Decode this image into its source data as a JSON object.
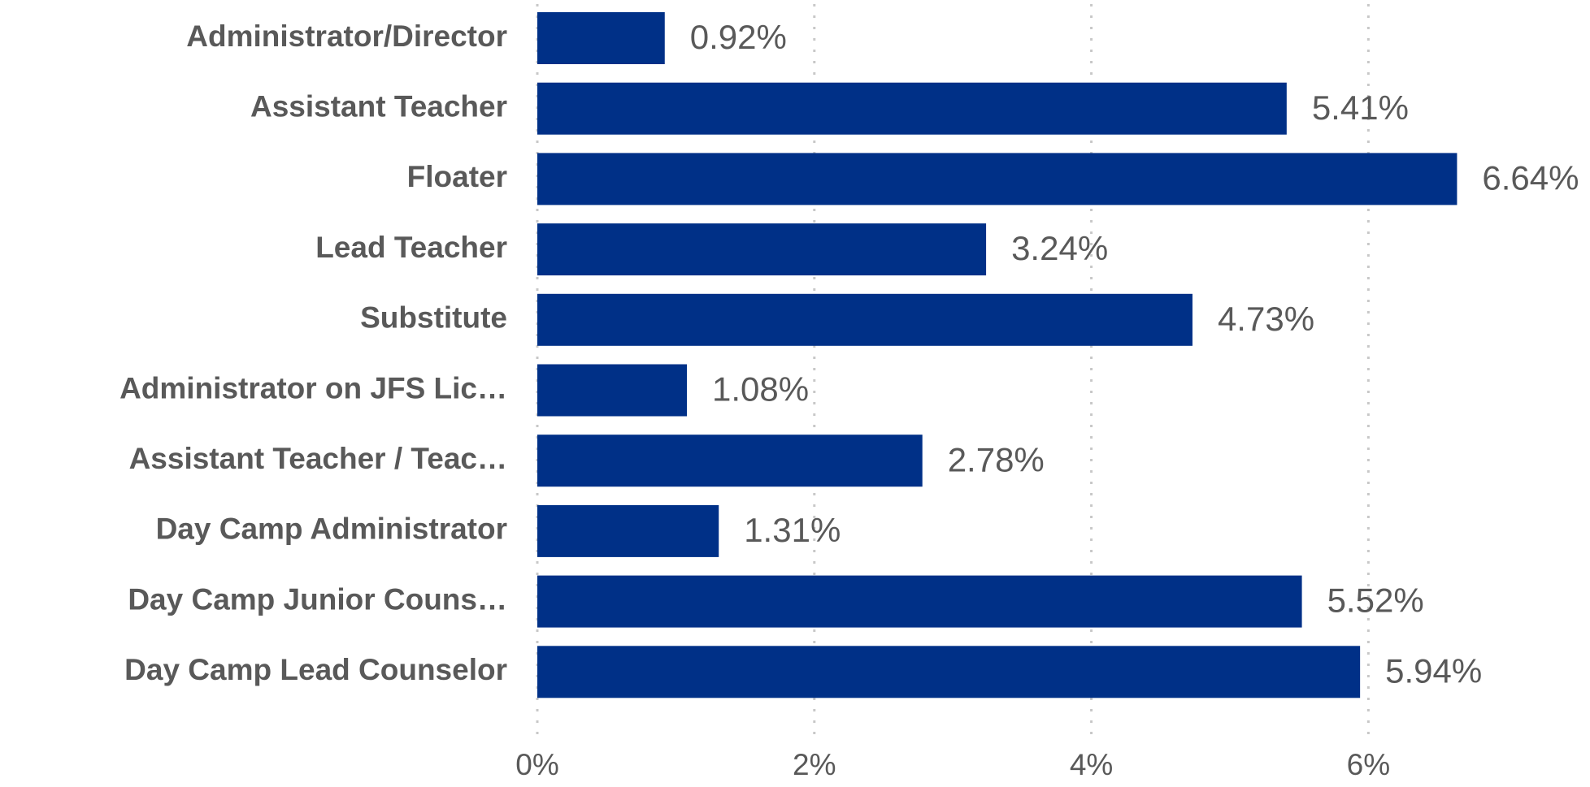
{
  "chart_data": {
    "type": "bar",
    "orientation": "horizontal",
    "categories": [
      "Administrator/Director",
      "Assistant Teacher",
      "Floater",
      "Lead Teacher",
      "Substitute",
      "Administrator on JFS Lic…",
      "Assistant Teacher / Teac…",
      "Day Camp Administrator",
      "Day Camp Junior Couns…",
      "Day Camp Lead Counselor"
    ],
    "values": [
      0.92,
      5.41,
      6.64,
      3.24,
      4.73,
      1.08,
      2.78,
      1.31,
      5.52,
      5.94
    ],
    "value_labels": [
      "0.92%",
      "5.41%",
      "6.64%",
      "3.24%",
      "4.73%",
      "1.08%",
      "2.78%",
      "1.31%",
      "5.52%",
      "5.94%"
    ],
    "color": "#003087",
    "xlim": [
      0,
      7.6
    ],
    "xticks": [
      {
        "value": 0,
        "label": "0%"
      },
      {
        "value": 2,
        "label": "2%"
      },
      {
        "value": 4,
        "label": "4%"
      },
      {
        "value": 6,
        "label": "6%"
      }
    ],
    "grid": true
  }
}
